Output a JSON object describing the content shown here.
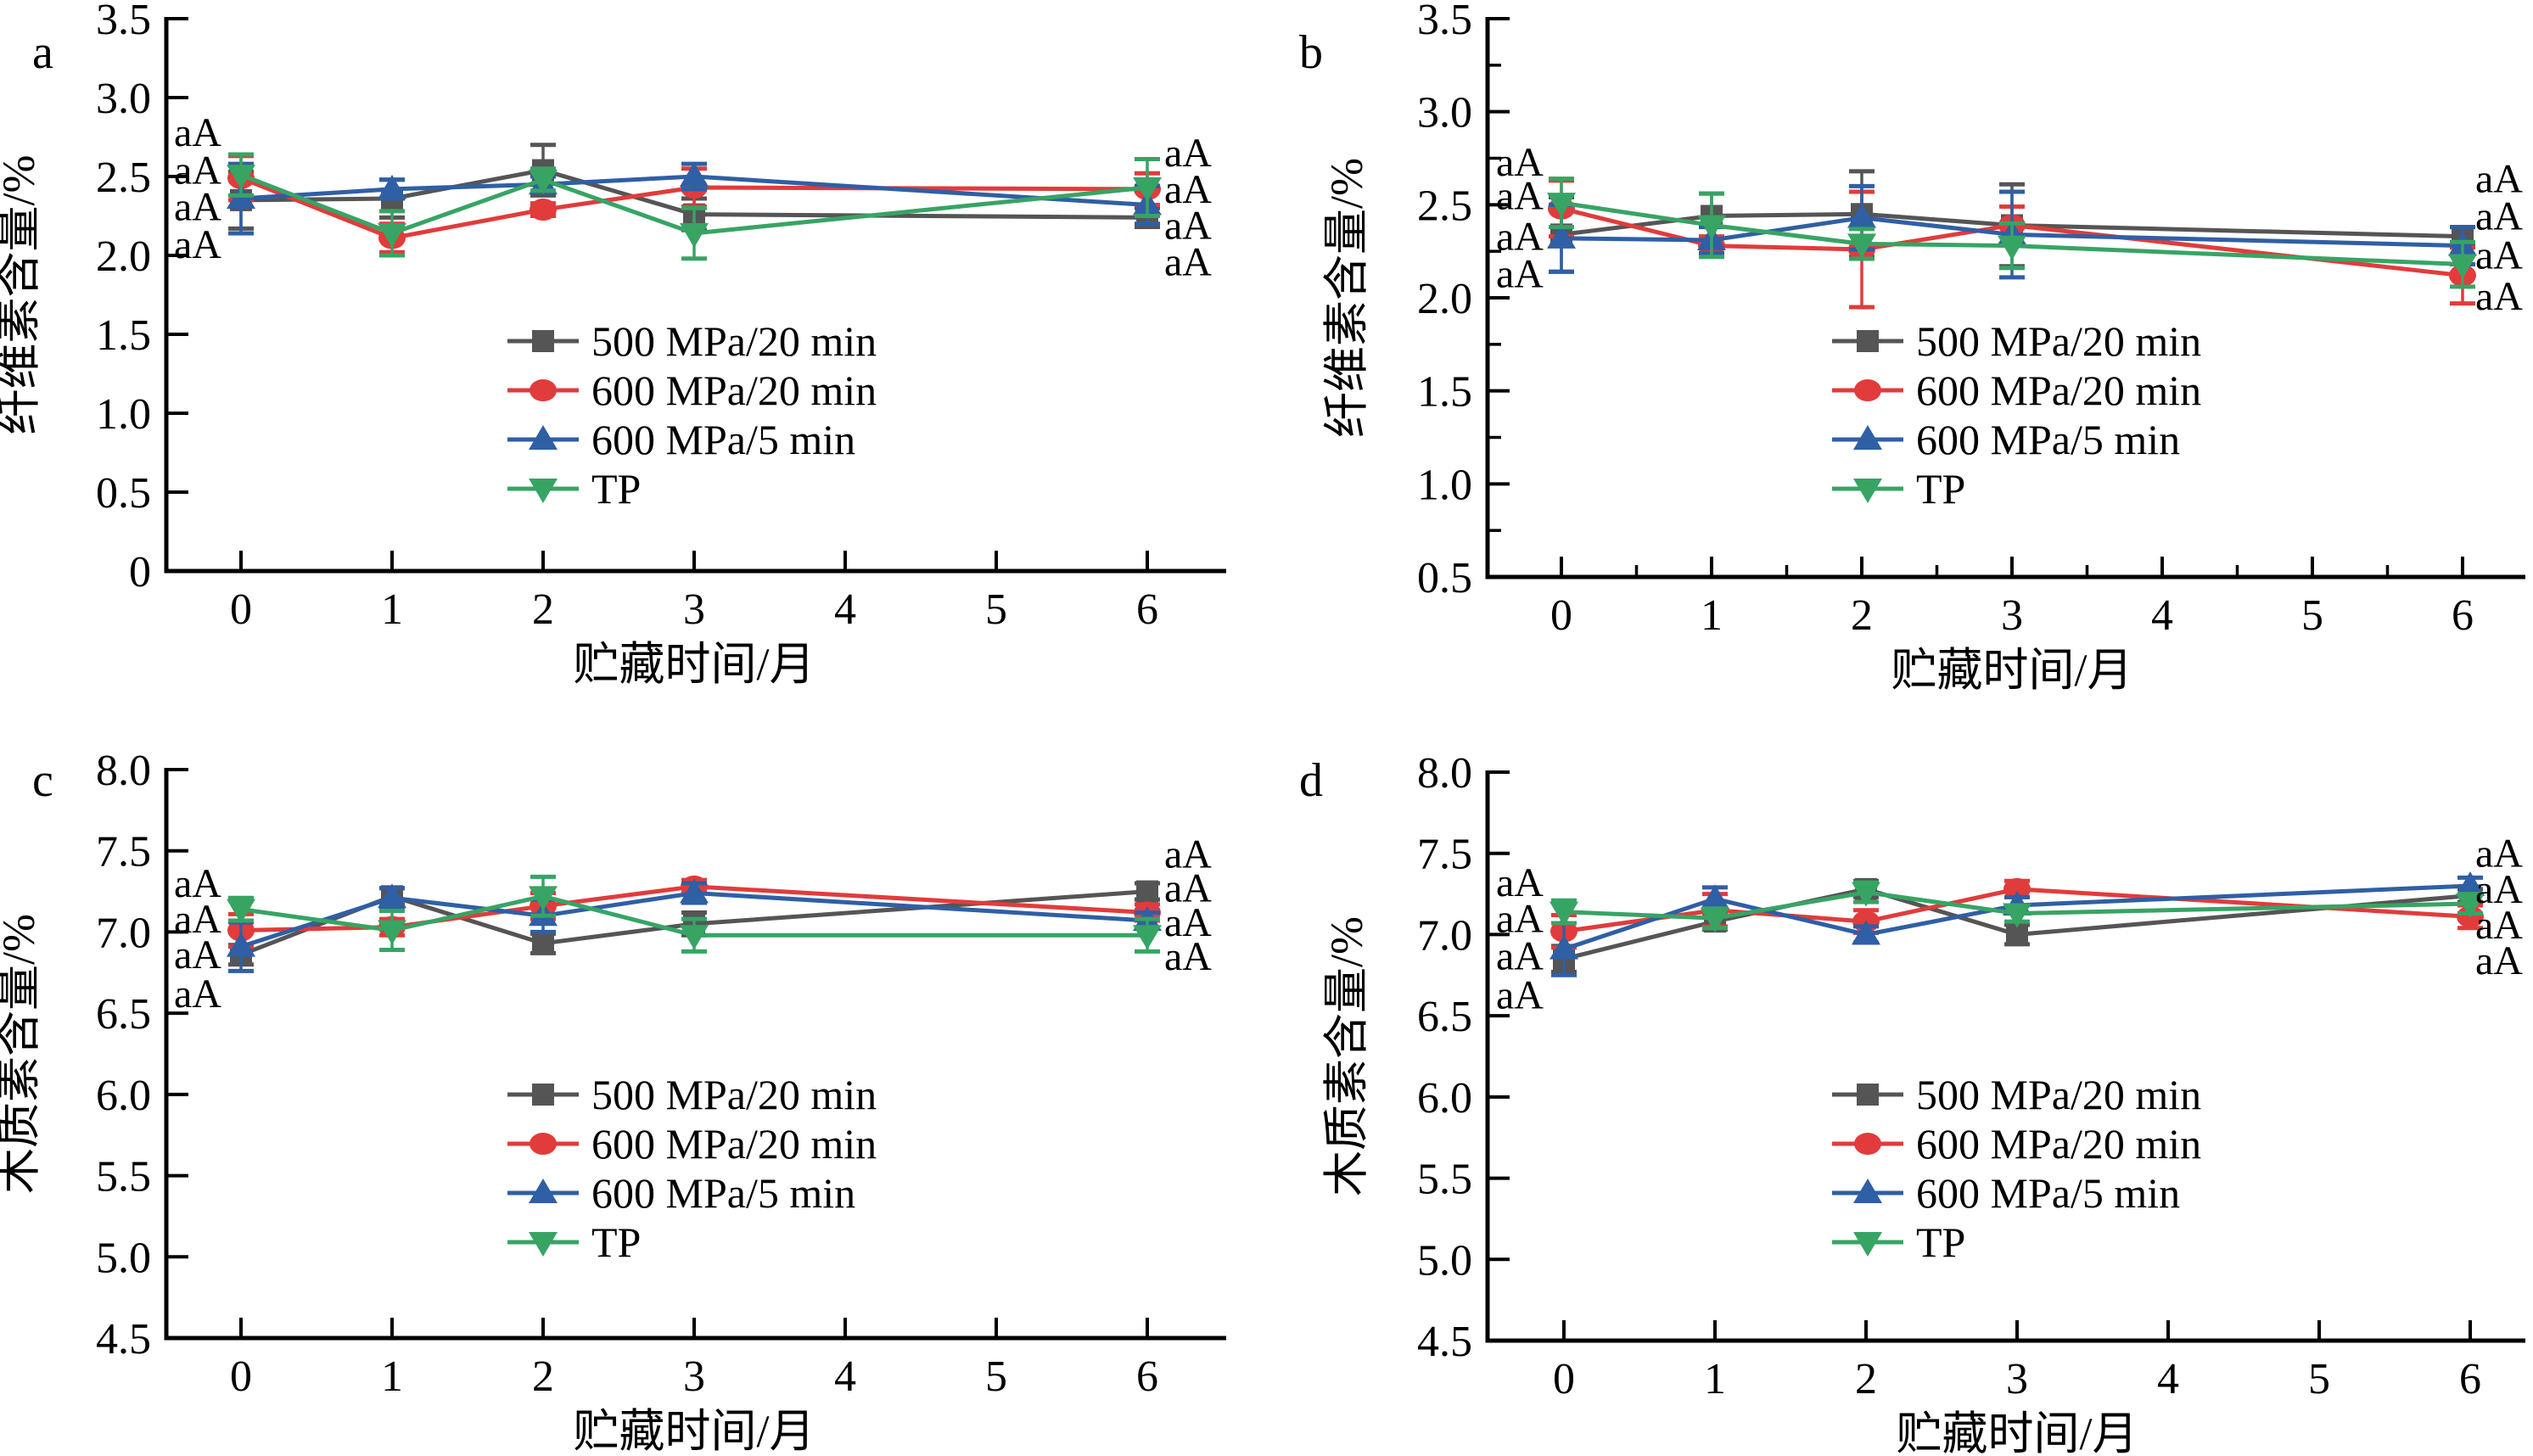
{
  "figure": {
    "background": "#ffffff",
    "panel_letters": [
      "a",
      "b",
      "c",
      "d"
    ],
    "annotation_label": "aA",
    "series_colors": {
      "p500_20": "#555555",
      "p600_20": "#e23b3b",
      "p600_5": "#2f5fa5",
      "tp": "#37a464"
    },
    "legend_labels": [
      "500 MPa/20 min",
      "600 MPa/20 min",
      "600 MPa/5 min",
      "TP"
    ]
  },
  "chart_data": [
    {
      "id": "a",
      "letter": "a",
      "type": "line",
      "xlabel": "贮藏时间/月",
      "ylabel": "纤维素含量/%",
      "x": [
        0,
        1,
        2,
        3,
        6
      ],
      "xticks": [
        "0",
        "1",
        "2",
        "3",
        "4",
        "5",
        "6"
      ],
      "ylim": [
        0,
        3.5
      ],
      "ytick_labels": [
        "3.5",
        "3.0",
        "2.5",
        "2.0",
        "1.5",
        "1.0",
        "0.5",
        "0"
      ],
      "y_minor": false,
      "x_minor": false,
      "legend": true,
      "legend_position": "center",
      "series": [
        {
          "name": "500 MPa/20 min",
          "color": "#555555",
          "marker": "square",
          "values": [
            2.35,
            2.36,
            2.54,
            2.26,
            2.24
          ],
          "errors": [
            0.18,
            0.12,
            0.16,
            0.1,
            0.06
          ]
        },
        {
          "name": "600 MPa/20 min",
          "color": "#e23b3b",
          "marker": "circle",
          "values": [
            2.49,
            2.11,
            2.29,
            2.43,
            2.42
          ],
          "errors": [
            0.14,
            0.09,
            0.04,
            0.12,
            0.1
          ]
        },
        {
          "name": "600 MPa/5 min",
          "color": "#2f5fa5",
          "marker": "triangle-up",
          "values": [
            2.36,
            2.42,
            2.45,
            2.5,
            2.32
          ],
          "errors": [
            0.22,
            0.06,
            0.05,
            0.08,
            0.12
          ]
        },
        {
          "name": "TP",
          "color": "#37a464",
          "marker": "triangle-down",
          "values": [
            2.51,
            2.14,
            2.48,
            2.14,
            2.43
          ],
          "errors": [
            0.13,
            0.14,
            0.07,
            0.16,
            0.18
          ]
        }
      ],
      "annotations_left": {
        "label": "aA",
        "values": [
          2.78,
          2.54,
          2.31,
          2.07
        ]
      },
      "annotations_right": {
        "label": "aA",
        "values": [
          2.65,
          2.42,
          2.19,
          1.96
        ]
      }
    },
    {
      "id": "b",
      "letter": "b",
      "type": "line",
      "xlabel": "贮藏时间/月",
      "ylabel": "纤维素含量/%",
      "x": [
        0,
        1,
        2,
        3,
        6
      ],
      "xticks": [
        "0",
        "1",
        "2",
        "3",
        "4",
        "5",
        "6"
      ],
      "ylim": [
        0.5,
        3.5
      ],
      "ytick_labels": [
        "3.5",
        "3.0",
        "2.5",
        "2.0",
        "1.5",
        "1.0",
        "0.5"
      ],
      "y_minor": true,
      "x_minor": true,
      "legend": true,
      "legend_position": "center",
      "series": [
        {
          "name": "500 MPa/20 min",
          "color": "#555555",
          "marker": "square",
          "values": [
            2.34,
            2.44,
            2.45,
            2.39,
            2.33
          ],
          "errors": [
            0.2,
            0.12,
            0.23,
            0.22,
            0.05
          ]
        },
        {
          "name": "600 MPa/20 min",
          "color": "#e23b3b",
          "marker": "circle",
          "values": [
            2.48,
            2.28,
            2.26,
            2.39,
            2.12
          ],
          "errors": [
            0.15,
            0.05,
            0.31,
            0.1,
            0.15
          ]
        },
        {
          "name": "600 MPa/5 min",
          "color": "#2f5fa5",
          "marker": "triangle-up",
          "values": [
            2.32,
            2.31,
            2.43,
            2.34,
            2.28
          ],
          "errors": [
            0.18,
            0.07,
            0.17,
            0.23,
            0.1
          ]
        },
        {
          "name": "TP",
          "color": "#37a464",
          "marker": "triangle-down",
          "values": [
            2.51,
            2.39,
            2.29,
            2.28,
            2.18
          ],
          "errors": [
            0.13,
            0.17,
            0.08,
            0.12,
            0.12
          ]
        }
      ],
      "annotations_left": {
        "label": "aA",
        "values": [
          2.73,
          2.55,
          2.33,
          2.13
        ]
      },
      "annotations_right": {
        "label": "aA",
        "values": [
          2.64,
          2.44,
          2.23,
          2.01
        ]
      }
    },
    {
      "id": "c",
      "letter": "c",
      "type": "line",
      "xlabel": "贮藏时间/月",
      "ylabel": "木质素含量/%",
      "x": [
        0,
        1,
        2,
        3,
        6
      ],
      "xticks": [
        "0",
        "1",
        "2",
        "3",
        "4",
        "5",
        "6"
      ],
      "ylim": [
        4.5,
        8.0
      ],
      "ytick_labels": [
        "8.0",
        "7.5",
        "7.0",
        "6.5",
        "6.0",
        "5.5",
        "5.0",
        "4.5"
      ],
      "y_minor": false,
      "x_minor": false,
      "legend": true,
      "legend_position": "center",
      "series": [
        {
          "name": "500 MPa/20 min",
          "color": "#555555",
          "marker": "square",
          "values": [
            6.86,
            7.22,
            6.93,
            7.05,
            7.25
          ],
          "errors": [
            0.06,
            0.05,
            0.06,
            0.07,
            0.05
          ]
        },
        {
          "name": "600 MPa/20 min",
          "color": "#e23b3b",
          "marker": "circle",
          "values": [
            7.01,
            7.03,
            7.16,
            7.28,
            7.12
          ],
          "errors": [
            0.1,
            0.05,
            0.08,
            0.04,
            0.05
          ]
        },
        {
          "name": "600 MPa/5 min",
          "color": "#2f5fa5",
          "marker": "triangle-up",
          "values": [
            6.91,
            7.21,
            7.1,
            7.24,
            7.07
          ],
          "errors": [
            0.15,
            0.06,
            0.1,
            0.06,
            0.05
          ]
        },
        {
          "name": "TP",
          "color": "#37a464",
          "marker": "triangle-down",
          "values": [
            7.14,
            7.01,
            7.22,
            6.98,
            6.98
          ],
          "errors": [
            0.07,
            0.12,
            0.12,
            0.1,
            0.1
          ]
        }
      ],
      "annotations_left": {
        "label": "aA",
        "values": [
          7.3,
          7.08,
          6.86,
          6.62
        ]
      },
      "annotations_right": {
        "label": "aA",
        "values": [
          7.48,
          7.27,
          7.06,
          6.85
        ]
      }
    },
    {
      "id": "d",
      "letter": "d",
      "type": "line",
      "xlabel": "贮藏时间/月",
      "ylabel": "木质素含量/%",
      "x": [
        0,
        1,
        2,
        3,
        6
      ],
      "xticks": [
        "0",
        "1",
        "2",
        "3",
        "4",
        "5",
        "6"
      ],
      "ylim": [
        4.5,
        8.0
      ],
      "ytick_labels": [
        "8.0",
        "7.5",
        "7.0",
        "6.5",
        "6.0",
        "5.5",
        "5.0",
        "4.5"
      ],
      "y_minor": false,
      "x_minor": false,
      "legend": true,
      "legend_position": "center",
      "series": [
        {
          "name": "500 MPa/20 min",
          "color": "#555555",
          "marker": "square",
          "values": [
            6.85,
            7.08,
            7.28,
            7.0,
            7.24
          ],
          "errors": [
            0.08,
            0.05,
            0.05,
            0.06,
            0.04
          ]
        },
        {
          "name": "600 MPa/20 min",
          "color": "#e23b3b",
          "marker": "circle",
          "values": [
            7.02,
            7.15,
            7.08,
            7.28,
            7.11
          ],
          "errors": [
            0.1,
            0.1,
            0.07,
            0.05,
            0.07
          ]
        },
        {
          "name": "600 MPa/5 min",
          "color": "#2f5fa5",
          "marker": "triangle-up",
          "values": [
            6.91,
            7.22,
            7.0,
            7.18,
            7.3
          ],
          "errors": [
            0.16,
            0.07,
            0.05,
            0.05,
            0.05
          ]
        },
        {
          "name": "TP",
          "color": "#37a464",
          "marker": "triangle-down",
          "values": [
            7.14,
            7.1,
            7.26,
            7.13,
            7.19
          ],
          "errors": [
            0.07,
            0.06,
            0.06,
            0.05,
            0.06
          ]
        }
      ],
      "annotations_left": {
        "label": "aA",
        "values": [
          7.32,
          7.1,
          6.87,
          6.63
        ]
      },
      "annotations_right": {
        "label": "aA",
        "values": [
          7.5,
          7.28,
          7.06,
          6.84
        ]
      }
    }
  ]
}
